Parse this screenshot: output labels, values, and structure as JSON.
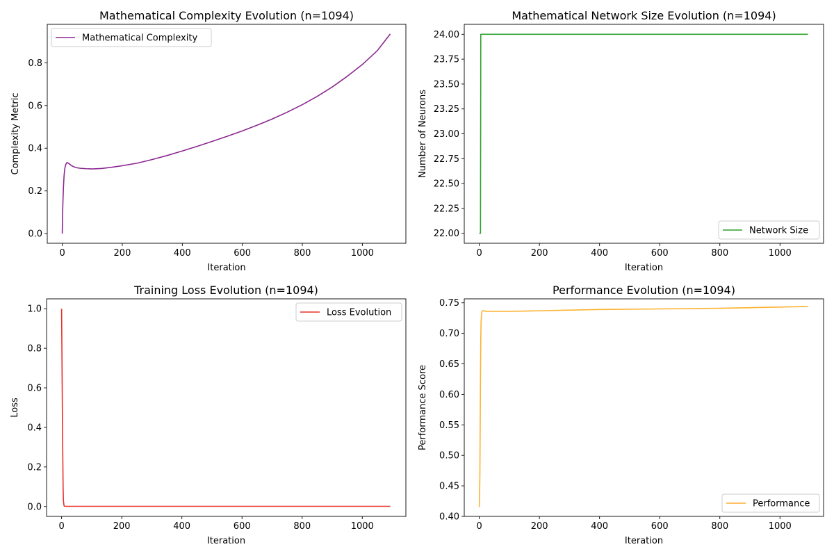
{
  "chart_data": [
    {
      "type": "line",
      "title": "Mathematical Complexity Evolution (n=1094)",
      "xlabel": "Iteration",
      "ylabel": "Complexity Metric",
      "xlim": [
        -50,
        1145
      ],
      "ylim": [
        -0.045,
        0.98
      ],
      "xticks": [
        0,
        200,
        400,
        600,
        800,
        1000
      ],
      "xtick_labels": [
        "0",
        "200",
        "400",
        "600",
        "800",
        "1000"
      ],
      "yticks": [
        0.0,
        0.2,
        0.4,
        0.6,
        0.8
      ],
      "ytick_labels": [
        "0.0",
        "0.2",
        "0.4",
        "0.6",
        "0.8"
      ],
      "grid": false,
      "legend_position": "upper-left",
      "series": [
        {
          "name": "Mathematical Complexity",
          "color": "#8b2890",
          "x": [
            0,
            1,
            2,
            4,
            6,
            8,
            10,
            13,
            16,
            20,
            25,
            30,
            40,
            50,
            60,
            80,
            100,
            130,
            160,
            200,
            250,
            300,
            350,
            400,
            450,
            500,
            550,
            600,
            650,
            700,
            750,
            800,
            850,
            900,
            950,
            1000,
            1050,
            1093
          ],
          "y": [
            0.0,
            0.08,
            0.14,
            0.22,
            0.27,
            0.3,
            0.315,
            0.328,
            0.333,
            0.33,
            0.325,
            0.319,
            0.312,
            0.308,
            0.306,
            0.304,
            0.303,
            0.305,
            0.31,
            0.318,
            0.33,
            0.347,
            0.366,
            0.387,
            0.409,
            0.432,
            0.456,
            0.481,
            0.508,
            0.537,
            0.569,
            0.604,
            0.643,
            0.687,
            0.737,
            0.792,
            0.857,
            0.935
          ]
        }
      ]
    },
    {
      "type": "line",
      "title": "Mathematical Network Size Evolution (n=1094)",
      "xlabel": "Iteration",
      "ylabel": "Number of Neurons",
      "xlim": [
        -50,
        1145
      ],
      "ylim": [
        21.9,
        24.1
      ],
      "xticks": [
        0,
        200,
        400,
        600,
        800,
        1000
      ],
      "xtick_labels": [
        "0",
        "200",
        "400",
        "600",
        "800",
        "1000"
      ],
      "yticks": [
        22.0,
        22.25,
        22.5,
        22.75,
        23.0,
        23.25,
        23.5,
        23.75,
        24.0
      ],
      "ytick_labels": [
        "22.00",
        "22.25",
        "22.50",
        "22.75",
        "23.00",
        "23.25",
        "23.50",
        "23.75",
        "24.00"
      ],
      "grid": false,
      "legend_position": "lower-right",
      "series": [
        {
          "name": "Network Size",
          "color": "#2ca02c",
          "x": [
            0,
            4,
            5,
            1093
          ],
          "y": [
            22.0,
            22.0,
            24.0,
            24.0
          ]
        }
      ]
    },
    {
      "type": "line",
      "title": "Training Loss Evolution (n=1094)",
      "xlabel": "Iteration",
      "ylabel": "Loss",
      "xlim": [
        -50,
        1145
      ],
      "ylim": [
        -0.05,
        1.05
      ],
      "xticks": [
        0,
        200,
        400,
        600,
        800,
        1000
      ],
      "xtick_labels": [
        "0",
        "200",
        "400",
        "600",
        "800",
        "1000"
      ],
      "yticks": [
        0.0,
        0.2,
        0.4,
        0.6,
        0.8,
        1.0
      ],
      "ytick_labels": [
        "0.0",
        "0.2",
        "0.4",
        "0.6",
        "0.8",
        "1.0"
      ],
      "grid": false,
      "legend_position": "upper-right",
      "series": [
        {
          "name": "Loss Evolution",
          "color": "#e8312a",
          "x": [
            0,
            1,
            2,
            3,
            4,
            5,
            6,
            8,
            10,
            1093
          ],
          "y": [
            1.0,
            0.8,
            0.6,
            0.4,
            0.25,
            0.1,
            0.03,
            0.005,
            0.001,
            0.001
          ]
        }
      ]
    },
    {
      "type": "line",
      "title": "Performance Evolution (n=1094)",
      "xlabel": "Iteration",
      "ylabel": "Performance Score",
      "xlim": [
        -50,
        1145
      ],
      "ylim": [
        0.4,
        0.7565
      ],
      "xticks": [
        0,
        200,
        400,
        600,
        800,
        1000
      ],
      "xtick_labels": [
        "0",
        "200",
        "400",
        "600",
        "800",
        "1000"
      ],
      "yticks": [
        0.4,
        0.45,
        0.5,
        0.55,
        0.6,
        0.65,
        0.7,
        0.75
      ],
      "ytick_labels": [
        "0.40",
        "0.45",
        "0.50",
        "0.55",
        "0.60",
        "0.65",
        "0.70",
        "0.75"
      ],
      "grid": false,
      "legend_position": "lower-right",
      "series": [
        {
          "name": "Performance",
          "color": "#ffb12e",
          "x": [
            0,
            1,
            2,
            3,
            4,
            5,
            6,
            8,
            10,
            15,
            20,
            50,
            100,
            200,
            400,
            600,
            800,
            1000,
            1093
          ],
          "y": [
            0.415,
            0.43,
            0.47,
            0.55,
            0.63,
            0.69,
            0.72,
            0.733,
            0.737,
            0.737,
            0.736,
            0.736,
            0.736,
            0.737,
            0.739,
            0.74,
            0.741,
            0.743,
            0.744
          ]
        }
      ]
    }
  ]
}
